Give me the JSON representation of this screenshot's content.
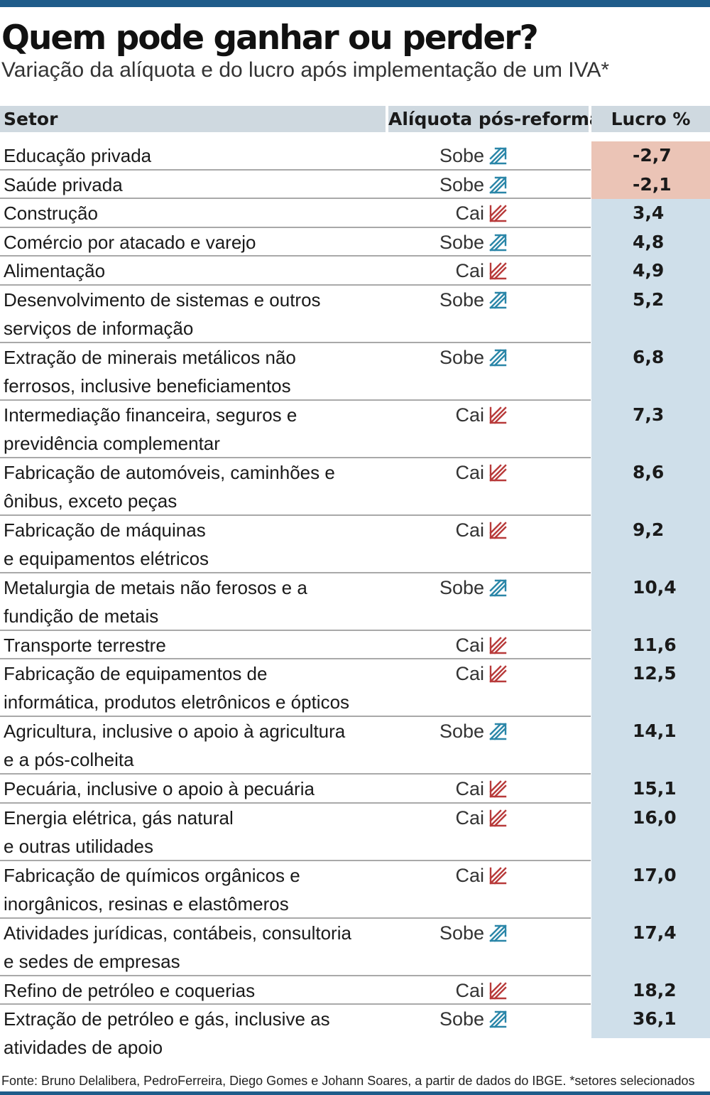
{
  "title": "Quem pode ganhar ou perder?",
  "subtitle": "Variação da alíquota e do lucro após implementação de um IVA*",
  "colors": {
    "accent": "#1f5c8a",
    "header_bg": "#cfd9e0",
    "lucro_bg": "#cfdfea",
    "negative_bg": "#ebc4b6",
    "up_arrow": "#2a86a8",
    "down_arrow": "#b83a3a"
  },
  "chart_data": {
    "type": "table",
    "columns": [
      "Setor",
      "Alíquota pós-reforma",
      "Lucro %"
    ],
    "rows": [
      {
        "setor": "Educação privada",
        "aliquota": "Sobe",
        "lucro": "-2,7"
      },
      {
        "setor": "Saúde privada",
        "aliquota": "Sobe",
        "lucro": "-2,1"
      },
      {
        "setor": "Construção",
        "aliquota": "Cai",
        "lucro": "3,4"
      },
      {
        "setor": "Comércio por atacado e varejo",
        "aliquota": "Sobe",
        "lucro": "4,8"
      },
      {
        "setor": "Alimentação",
        "aliquota": "Cai",
        "lucro": "4,9"
      },
      {
        "setor": "Desenvolvimento de sistemas e outros\nserviços de informação",
        "aliquota": "Sobe",
        "lucro": "5,2"
      },
      {
        "setor": "Extração de minerais metálicos não\nferrosos, inclusive beneficiamentos",
        "aliquota": "Sobe",
        "lucro": "6,8"
      },
      {
        "setor": "Intermediação financeira, seguros e\nprevidência complementar",
        "aliquota": "Cai",
        "lucro": "7,3"
      },
      {
        "setor": "Fabricação de automóveis, caminhões e\nônibus, exceto peças",
        "aliquota": "Cai",
        "lucro": "8,6"
      },
      {
        "setor": "Fabricação de máquinas\ne equipamentos elétricos",
        "aliquota": "Cai",
        "lucro": "9,2"
      },
      {
        "setor": "Metalurgia de metais não ferosos e a\nfundição de metais",
        "aliquota": "Sobe",
        "lucro": "10,4"
      },
      {
        "setor": "Transporte terrestre",
        "aliquota": "Cai",
        "lucro": "11,6"
      },
      {
        "setor": "Fabricação de equipamentos de\ninformática, produtos eletrônicos e ópticos",
        "aliquota": "Cai",
        "lucro": "12,5"
      },
      {
        "setor": "Agricultura, inclusive o apoio à agricultura\ne a pós-colheita",
        "aliquota": "Sobe",
        "lucro": "14,1"
      },
      {
        "setor": "Pecuária, inclusive o apoio à pecuária",
        "aliquota": "Cai",
        "lucro": "15,1"
      },
      {
        "setor": "Energia elétrica, gás natural\ne outras utilidades",
        "aliquota": "Cai",
        "lucro": "16,0"
      },
      {
        "setor": "Fabricação de químicos orgânicos e\ninorgânicos, resinas e elastômeros",
        "aliquota": "Cai",
        "lucro": "17,0"
      },
      {
        "setor": "Atividades jurídicas, contábeis, consultoria\ne sedes de empresas",
        "aliquota": "Sobe",
        "lucro": "17,4"
      },
      {
        "setor": "Refino de petróleo e coquerias",
        "aliquota": "Cai",
        "lucro": "18,2"
      },
      {
        "setor": "Extração de petróleo e gás, inclusive as\natividades de apoio",
        "aliquota": "Sobe",
        "lucro": "36,1"
      }
    ]
  },
  "source": "Fonte: Bruno Delalibera, PedroFerreira, Diego Gomes e Johann Soares, a partir de dados do IBGE. *setores selecionados"
}
